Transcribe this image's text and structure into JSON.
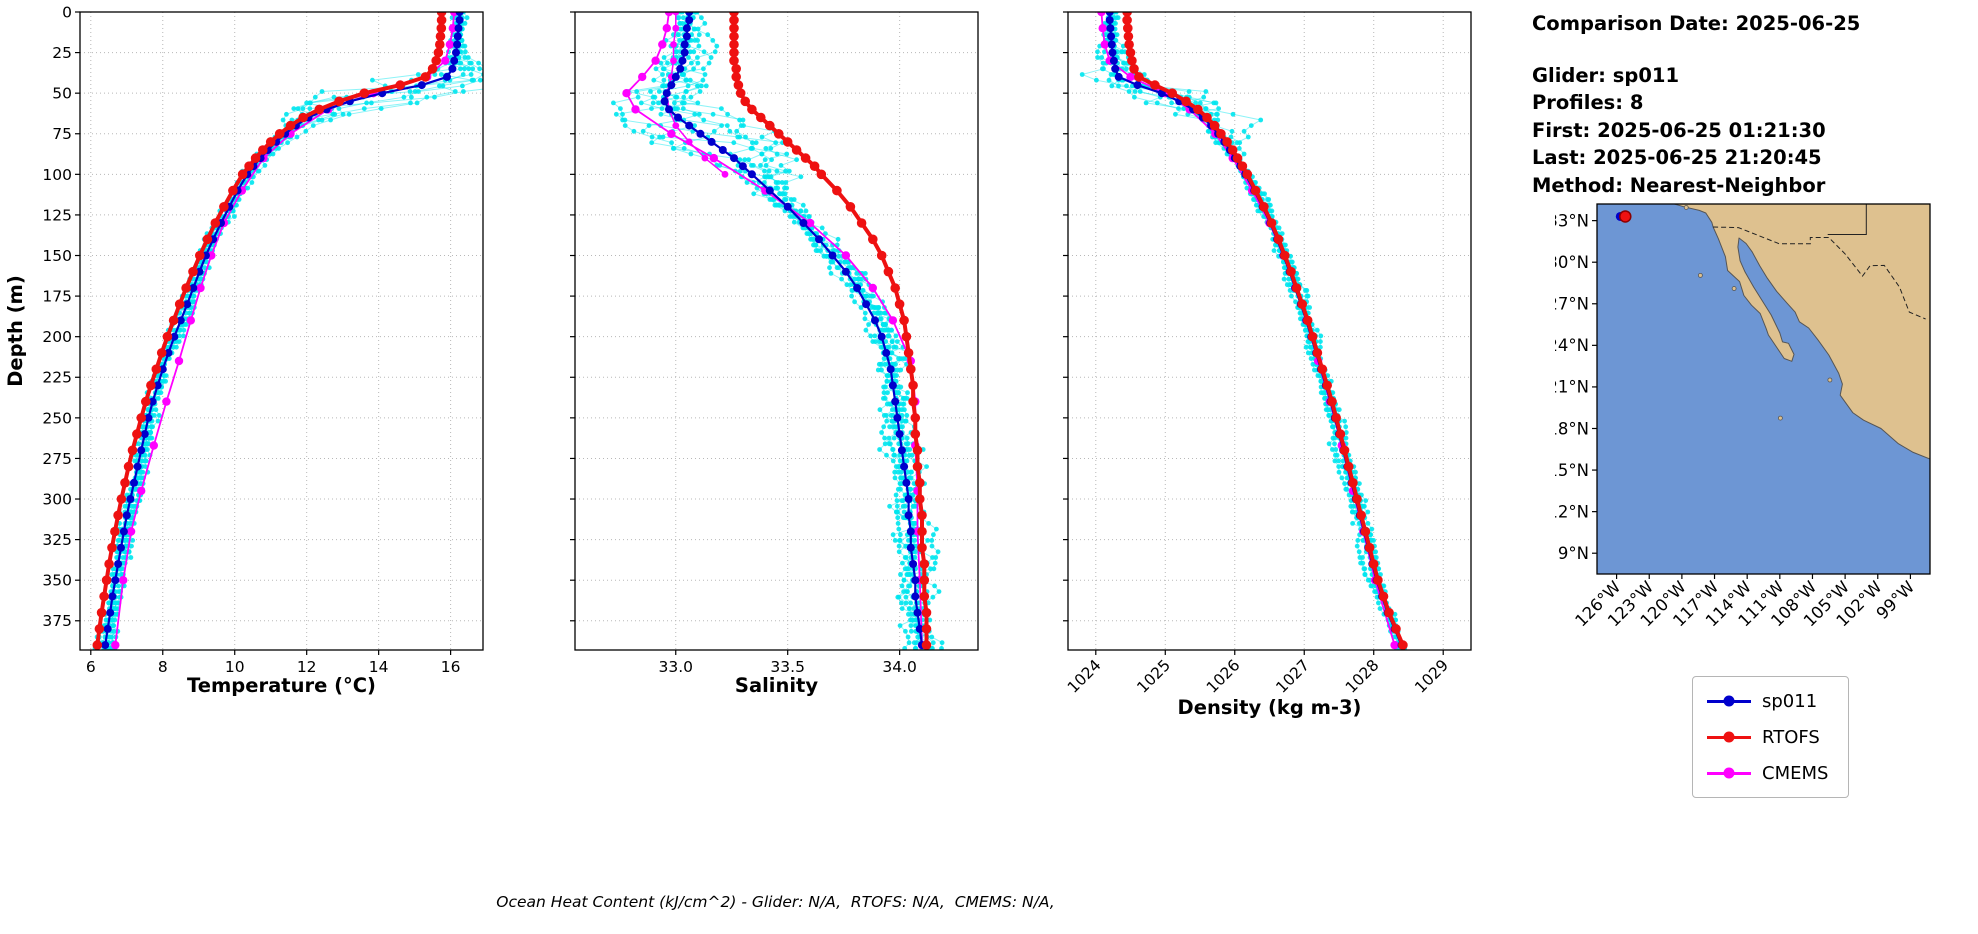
{
  "info_panel": {
    "lines": [
      "Comparison Date: 2025-06-25",
      "",
      "Glider: sp011",
      "Profiles: 8",
      "First: 2025-06-25 01:21:30",
      "Last: 2025-06-25 21:20:45",
      "Method: Nearest-Neighbor"
    ]
  },
  "footer": {
    "text": "Ocean Heat Content (kJ/cm^2) - Glider: N/A,  RTOFS: N/A,  CMEMS: N/A,"
  },
  "legend": {
    "items": [
      {
        "label": "sp011",
        "color_key": "sp011"
      },
      {
        "label": "RTOFS",
        "color_key": "rtofs"
      },
      {
        "label": "CMEMS",
        "color_key": "cmems"
      }
    ]
  },
  "colors": {
    "sp011": "#0000cc",
    "rtofs": "#ee1111",
    "cmems": "#ff00ff",
    "glider_scatter": "#00e5ee",
    "grid": "#b8b8b8",
    "land": "#dec18f",
    "ocean": "#6d96d4",
    "coast": "#555555",
    "border": "#222222",
    "marker_fill": "#ee1111",
    "marker_edge": "#8b0000"
  },
  "depth_axis": {
    "label": "Depth (m)",
    "lim": [
      0,
      393
    ],
    "ticks": [
      0,
      25,
      50,
      75,
      100,
      125,
      150,
      175,
      200,
      225,
      250,
      275,
      300,
      325,
      350,
      375
    ]
  },
  "depth_grids": {
    "fine": [
      0,
      5,
      10,
      15,
      20,
      25,
      30,
      35,
      40,
      45,
      50,
      55,
      60,
      65,
      70,
      75,
      80,
      85,
      90,
      95,
      100,
      110,
      120,
      130,
      140,
      150,
      160,
      170,
      180,
      190,
      200,
      210,
      220,
      230,
      240,
      250,
      260,
      270,
      280,
      290,
      300,
      310,
      320,
      330,
      340,
      350,
      360,
      370,
      380,
      390
    ],
    "cmems": [
      0,
      10,
      20,
      30,
      40,
      50,
      60,
      75,
      90,
      110,
      130,
      150,
      170,
      190,
      215,
      240,
      267,
      295,
      320,
      350,
      390
    ],
    "cmems_b": [
      0,
      10,
      20,
      30,
      40,
      50,
      60,
      70,
      80,
      90,
      100
    ]
  },
  "chart_data": [
    {
      "type": "line",
      "id": "temperature",
      "xlabel": "Temperature (°C)",
      "xlim": [
        5.7,
        16.9
      ],
      "xticks": [
        6,
        8,
        10,
        12,
        14,
        16
      ],
      "xtick_labels": [
        "6",
        "8",
        "10",
        "12",
        "14",
        "16"
      ],
      "rotate_xticklabels": false,
      "ylabel": "Depth (m)",
      "grid": true,
      "series": [
        {
          "name": "CMEMS",
          "color_key": "cmems",
          "line_w": 1.8,
          "marker_r": 4.2,
          "depth_grid": "cmems",
          "values": [
            16.1,
            16.06,
            15.98,
            15.85,
            15.35,
            13.85,
            12.6,
            11.55,
            10.8,
            10.2,
            9.7,
            9.35,
            9.05,
            8.78,
            8.45,
            8.1,
            7.75,
            7.4,
            7.12,
            6.9,
            6.68
          ]
        },
        {
          "name": "sp011",
          "color_key": "sp011",
          "line_w": 2.2,
          "marker_r": 4,
          "depth_grid": "fine",
          "values": [
            16.25,
            16.25,
            16.22,
            16.2,
            16.18,
            16.15,
            16.1,
            16.05,
            15.9,
            15.2,
            14.1,
            13.2,
            12.55,
            12.05,
            11.7,
            11.4,
            11.15,
            10.92,
            10.72,
            10.52,
            10.35,
            10.08,
            9.85,
            9.62,
            9.4,
            9.2,
            9.02,
            8.85,
            8.68,
            8.5,
            8.32,
            8.16,
            8.0,
            7.86,
            7.72,
            7.6,
            7.5,
            7.4,
            7.3,
            7.2,
            7.1,
            7.0,
            6.92,
            6.84,
            6.76,
            6.68,
            6.6,
            6.54,
            6.47,
            6.4
          ]
        },
        {
          "name": "RTOFS",
          "color_key": "rtofs",
          "line_w": 4,
          "marker_r": 4.8,
          "depth_grid": "fine",
          "values": [
            15.75,
            15.75,
            15.74,
            15.72,
            15.7,
            15.66,
            15.6,
            15.5,
            15.3,
            14.6,
            13.6,
            12.9,
            12.35,
            11.9,
            11.55,
            11.25,
            11.0,
            10.78,
            10.58,
            10.4,
            10.22,
            9.95,
            9.7,
            9.46,
            9.24,
            9.03,
            8.84,
            8.65,
            8.47,
            8.3,
            8.13,
            7.97,
            7.82,
            7.67,
            7.53,
            7.4,
            7.28,
            7.16,
            7.05,
            6.95,
            6.85,
            6.76,
            6.67,
            6.59,
            6.51,
            6.44,
            6.37,
            6.3,
            6.24,
            6.18
          ]
        }
      ],
      "scatter": {
        "name": "glider raw profiles",
        "base": "sp011",
        "color_key": "glider_scatter",
        "seed": 20250625,
        "n_profiles": 8,
        "depth_step": 3.5,
        "sigma_base": 0.11,
        "sigma_extra": 1.05,
        "tc_depth": 50,
        "tc_width": 16
      }
    },
    {
      "type": "line",
      "id": "salinity",
      "xlabel": "Salinity",
      "xlim": [
        32.55,
        34.35
      ],
      "xticks": [
        33.0,
        33.5,
        34.0
      ],
      "xtick_labels": [
        "33.0",
        "33.5",
        "34.0"
      ],
      "rotate_xticklabels": false,
      "grid": true,
      "series": [
        {
          "name": "CMEMS-b",
          "color_key": "cmems",
          "line_w": 1.5,
          "marker_r": 3.4,
          "depth_grid": "cmems_b",
          "values": [
            33.0,
            33.0,
            32.99,
            32.99,
            32.98,
            32.96,
            32.97,
            33.0,
            33.06,
            33.13,
            33.22
          ]
        },
        {
          "name": "CMEMS",
          "color_key": "cmems",
          "line_w": 1.8,
          "marker_r": 4.2,
          "depth_grid": "cmems",
          "values": [
            32.97,
            32.96,
            32.94,
            32.91,
            32.85,
            32.78,
            32.82,
            32.98,
            33.17,
            33.4,
            33.6,
            33.76,
            33.88,
            33.97,
            34.05,
            34.07,
            34.07,
            34.08,
            34.08,
            34.09,
            34.1
          ]
        },
        {
          "name": "sp011",
          "color_key": "sp011",
          "line_w": 2.2,
          "marker_r": 4,
          "depth_grid": "fine",
          "values": [
            33.06,
            33.06,
            33.05,
            33.05,
            33.04,
            33.04,
            33.03,
            33.02,
            33.0,
            32.98,
            32.96,
            32.95,
            32.97,
            33.01,
            33.06,
            33.11,
            33.16,
            33.21,
            33.26,
            33.3,
            33.34,
            33.42,
            33.5,
            33.57,
            33.64,
            33.7,
            33.76,
            33.81,
            33.85,
            33.89,
            33.92,
            33.94,
            33.96,
            33.97,
            33.98,
            33.99,
            34.0,
            34.01,
            34.02,
            34.03,
            34.04,
            34.04,
            34.05,
            34.05,
            34.06,
            34.07,
            34.07,
            34.08,
            34.09,
            34.1
          ]
        },
        {
          "name": "RTOFS",
          "color_key": "rtofs",
          "line_w": 4,
          "marker_r": 4.8,
          "depth_grid": "fine",
          "values": [
            33.26,
            33.26,
            33.26,
            33.26,
            33.26,
            33.26,
            33.26,
            33.27,
            33.27,
            33.28,
            33.29,
            33.31,
            33.34,
            33.38,
            33.42,
            33.46,
            33.5,
            33.54,
            33.58,
            33.62,
            33.65,
            33.72,
            33.78,
            33.83,
            33.88,
            33.92,
            33.95,
            33.98,
            34.0,
            34.02,
            34.03,
            34.04,
            34.05,
            34.06,
            34.06,
            34.07,
            34.07,
            34.08,
            34.08,
            34.09,
            34.09,
            34.1,
            34.1,
            34.1,
            34.11,
            34.11,
            34.11,
            34.12,
            34.12,
            34.12
          ]
        }
      ],
      "scatter": {
        "name": "glider raw profiles",
        "base": "sp011",
        "color_key": "glider_scatter",
        "seed": 42,
        "n_profiles": 8,
        "depth_step": 3.5,
        "sigma_base": 0.038,
        "sigma_extra": 0.09,
        "tc_depth": 70,
        "tc_width": 32
      }
    },
    {
      "type": "line",
      "id": "density",
      "xlabel": "Density (kg m-3)",
      "xlim": [
        1023.6,
        1029.4
      ],
      "xticks": [
        1024,
        1025,
        1026,
        1027,
        1028,
        1029
      ],
      "xtick_labels": [
        "1024",
        "1025",
        "1026",
        "1027",
        "1028",
        "1029"
      ],
      "rotate_xticklabels": true,
      "grid": true,
      "series": [
        {
          "name": "CMEMS",
          "color_key": "cmems",
          "line_w": 1.8,
          "marker_r": 4.2,
          "depth_grid": "cmems",
          "values": [
            1024.08,
            1024.1,
            1024.13,
            1024.2,
            1024.5,
            1025.0,
            1025.35,
            1025.72,
            1025.97,
            1026.25,
            1026.5,
            1026.7,
            1026.87,
            1027.03,
            1027.2,
            1027.37,
            1027.54,
            1027.7,
            1027.85,
            1028.02,
            1028.3
          ]
        },
        {
          "name": "sp011",
          "color_key": "sp011",
          "line_w": 2.2,
          "marker_r": 4,
          "depth_grid": "fine",
          "values": [
            1024.2,
            1024.2,
            1024.21,
            1024.22,
            1024.23,
            1024.24,
            1024.26,
            1024.28,
            1024.33,
            1024.6,
            1024.95,
            1025.2,
            1025.4,
            1025.54,
            1025.66,
            1025.76,
            1025.85,
            1025.93,
            1026.0,
            1026.08,
            1026.15,
            1026.28,
            1026.4,
            1026.51,
            1026.61,
            1026.7,
            1026.79,
            1026.87,
            1026.95,
            1027.03,
            1027.1,
            1027.17,
            1027.24,
            1027.31,
            1027.38,
            1027.44,
            1027.5,
            1027.56,
            1027.62,
            1027.68,
            1027.74,
            1027.8,
            1027.86,
            1027.92,
            1027.98,
            1028.04,
            1028.12,
            1028.2,
            1028.3,
            1028.4
          ]
        },
        {
          "name": "RTOFS",
          "color_key": "rtofs",
          "line_w": 4,
          "marker_r": 4.8,
          "depth_grid": "fine",
          "values": [
            1024.45,
            1024.45,
            1024.46,
            1024.47,
            1024.48,
            1024.5,
            1024.52,
            1024.55,
            1024.62,
            1024.85,
            1025.1,
            1025.3,
            1025.47,
            1025.6,
            1025.71,
            1025.8,
            1025.89,
            1025.97,
            1026.04,
            1026.11,
            1026.18,
            1026.3,
            1026.42,
            1026.53,
            1026.63,
            1026.72,
            1026.81,
            1026.89,
            1026.97,
            1027.05,
            1027.12,
            1027.19,
            1027.26,
            1027.33,
            1027.4,
            1027.46,
            1027.52,
            1027.58,
            1027.64,
            1027.7,
            1027.76,
            1027.82,
            1027.88,
            1027.94,
            1028.0,
            1028.06,
            1028.14,
            1028.22,
            1028.32,
            1028.42
          ]
        }
      ],
      "scatter": {
        "name": "glider raw profiles",
        "base": "sp011",
        "color_key": "glider_scatter",
        "seed": 7,
        "n_profiles": 8,
        "depth_step": 3.5,
        "sigma_base": 0.05,
        "sigma_extra": 0.28,
        "tc_depth": 52,
        "tc_width": 20
      }
    }
  ],
  "map": {
    "lon_lim": [
      -127.8,
      -97.2
    ],
    "lat_lim": [
      7.5,
      34.2
    ],
    "lat_ticks": [
      33,
      30,
      27,
      24,
      21,
      18,
      15,
      12,
      9
    ],
    "lat_labels": [
      "33°N",
      "30°N",
      "27°N",
      "24°N",
      "21°N",
      "18°N",
      "15°N",
      "12°N",
      "9°N"
    ],
    "lon_ticks": [
      -126,
      -123,
      -120,
      -117,
      -114,
      -111,
      -108,
      -105,
      -102,
      -99
    ],
    "lon_labels": [
      "126°W",
      "123°W",
      "120°W",
      "117°W",
      "114°W",
      "111°W",
      "108°W",
      "105°W",
      "102°W",
      "99°W"
    ],
    "marker": {
      "lon": -125.2,
      "lat": 33.3
    },
    "land": [
      [
        [
          -120.7,
          34.2
        ],
        [
          -119.8,
          34.0
        ],
        [
          -118.4,
          33.74
        ],
        [
          -117.8,
          33.55
        ],
        [
          -117.25,
          32.88
        ],
        [
          -117.13,
          32.54
        ],
        [
          -116.65,
          31.7
        ],
        [
          -116.0,
          30.4
        ],
        [
          -115.8,
          29.4
        ],
        [
          -114.7,
          28.6
        ],
        [
          -114.3,
          27.6
        ],
        [
          -113.6,
          26.9
        ],
        [
          -112.8,
          26.3
        ],
        [
          -112.25,
          25.2
        ],
        [
          -112.05,
          24.75
        ],
        [
          -110.6,
          23.05
        ],
        [
          -109.9,
          22.85
        ],
        [
          -109.7,
          23.35
        ],
        [
          -110.2,
          24.15
        ],
        [
          -110.75,
          24.25
        ],
        [
          -111.0,
          24.9
        ],
        [
          -111.8,
          26.2
        ],
        [
          -112.6,
          27.2
        ],
        [
          -113.4,
          28.2
        ],
        [
          -114.2,
          29.3
        ],
        [
          -114.65,
          30.1
        ],
        [
          -114.85,
          31.1
        ],
        [
          -114.75,
          31.75
        ],
        [
          -114.1,
          31.35
        ],
        [
          -113.55,
          30.75
        ],
        [
          -112.85,
          29.75
        ],
        [
          -112.2,
          28.9
        ],
        [
          -111.3,
          27.9
        ],
        [
          -110.4,
          27.1
        ],
        [
          -109.6,
          26.4
        ],
        [
          -109.2,
          25.7
        ],
        [
          -108.35,
          25.25
        ],
        [
          -107.5,
          24.4
        ],
        [
          -106.5,
          23.3
        ],
        [
          -105.6,
          22.0
        ],
        [
          -105.25,
          21.2
        ],
        [
          -105.45,
          20.4
        ],
        [
          -104.3,
          19.15
        ],
        [
          -103.3,
          18.6
        ],
        [
          -101.7,
          18.0
        ],
        [
          -100.1,
          16.9
        ],
        [
          -98.8,
          16.3
        ],
        [
          -97.2,
          15.8
        ],
        [
          -97.2,
          34.2
        ]
      ]
    ],
    "islands": [
      [
        -119.6,
        33.95
      ],
      [
        -118.3,
        29.05
      ],
      [
        -115.2,
        28.1
      ],
      [
        -110.95,
        18.75
      ],
      [
        -106.4,
        21.5
      ]
    ],
    "borders": [
      {
        "name": "us-mexico-border",
        "dash": true,
        "points": [
          [
            -117.13,
            32.54
          ],
          [
            -114.8,
            32.5
          ],
          [
            -111.05,
            31.33
          ],
          [
            -108.2,
            31.33
          ],
          [
            -108.2,
            31.78
          ],
          [
            -106.5,
            31.78
          ],
          [
            -105.0,
            30.6
          ],
          [
            -103.4,
            29.0
          ],
          [
            -102.7,
            29.75
          ],
          [
            -101.4,
            29.77
          ],
          [
            -100.0,
            28.2
          ],
          [
            -99.1,
            26.4
          ],
          [
            -97.6,
            25.9
          ]
        ]
      },
      {
        "name": "state-border",
        "dash": false,
        "points": [
          [
            -103.05,
            34.2
          ],
          [
            -103.05,
            32.0
          ],
          [
            -106.6,
            32.0
          ]
        ]
      }
    ]
  }
}
